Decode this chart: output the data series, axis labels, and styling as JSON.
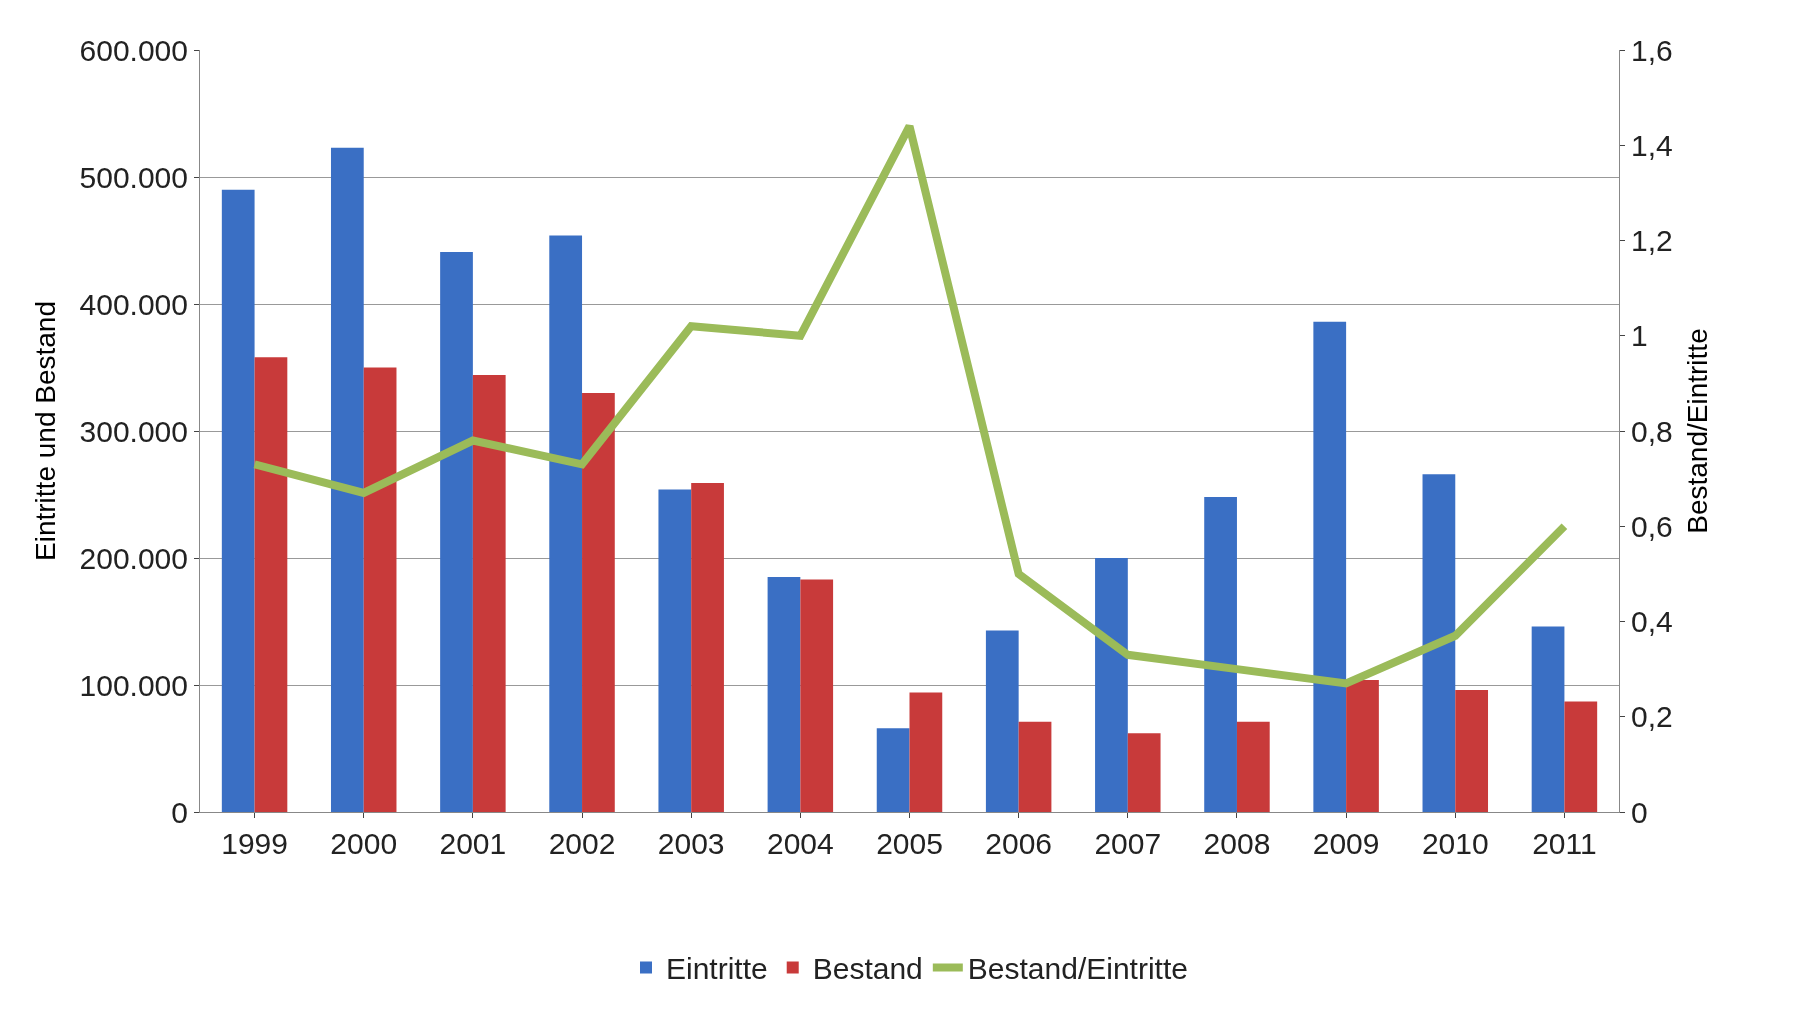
{
  "chart_data": {
    "type": "bar",
    "categories": [
      "1999",
      "2000",
      "2001",
      "2002",
      "2003",
      "2004",
      "2005",
      "2006",
      "2007",
      "2008",
      "2009",
      "2010",
      "2011"
    ],
    "series": [
      {
        "name": "Eintritte",
        "color": "#3a6fc4",
        "values": [
          490000,
          523000,
          441000,
          454000,
          254000,
          185000,
          66000,
          143000,
          200000,
          248000,
          386000,
          266000,
          146000
        ]
      },
      {
        "name": "Bestand",
        "color": "#c83a3a",
        "values": [
          358000,
          350000,
          344000,
          330000,
          259000,
          183000,
          94000,
          71000,
          62000,
          71000,
          104000,
          96000,
          87000
        ]
      },
      {
        "name": "Bestand/Eintritte",
        "color": "#9bbb59",
        "type": "line",
        "axis": "y2",
        "values": [
          0.73,
          0.67,
          0.78,
          0.73,
          1.02,
          1.0,
          1.44,
          0.5,
          0.33,
          0.3,
          0.27,
          0.37,
          0.6
        ]
      }
    ],
    "ylabel": "Eintritte und Bestand",
    "y2label": "Bestand/Eintritte",
    "ylim": [
      0,
      600000
    ],
    "yticks": [
      {
        "value": 0,
        "label": "0"
      },
      {
        "value": 100000,
        "label": "100.000"
      },
      {
        "value": 200000,
        "label": "200.000"
      },
      {
        "value": 300000,
        "label": "300.000"
      },
      {
        "value": 400000,
        "label": "400.000"
      },
      {
        "value": 500000,
        "label": "500.000"
      },
      {
        "value": 600000,
        "label": "600.000"
      }
    ],
    "y2lim": [
      0,
      1.6
    ],
    "y2ticks": [
      0,
      {
        "value": 0.2,
        "label": "0,2"
      },
      {
        "value": 0.4,
        "label": "0,4"
      },
      {
        "value": 0.6,
        "label": "0,6"
      },
      {
        "value": 0.8,
        "label": "0,8"
      },
      1,
      {
        "value": 1.2,
        "label": "1,2"
      },
      {
        "value": 1.4,
        "label": "1,4"
      },
      {
        "value": 1.6,
        "label": "1,6"
      }
    ],
    "grid": "y",
    "legend": "bottom",
    "marker": "none",
    "line_style": "solid"
  }
}
